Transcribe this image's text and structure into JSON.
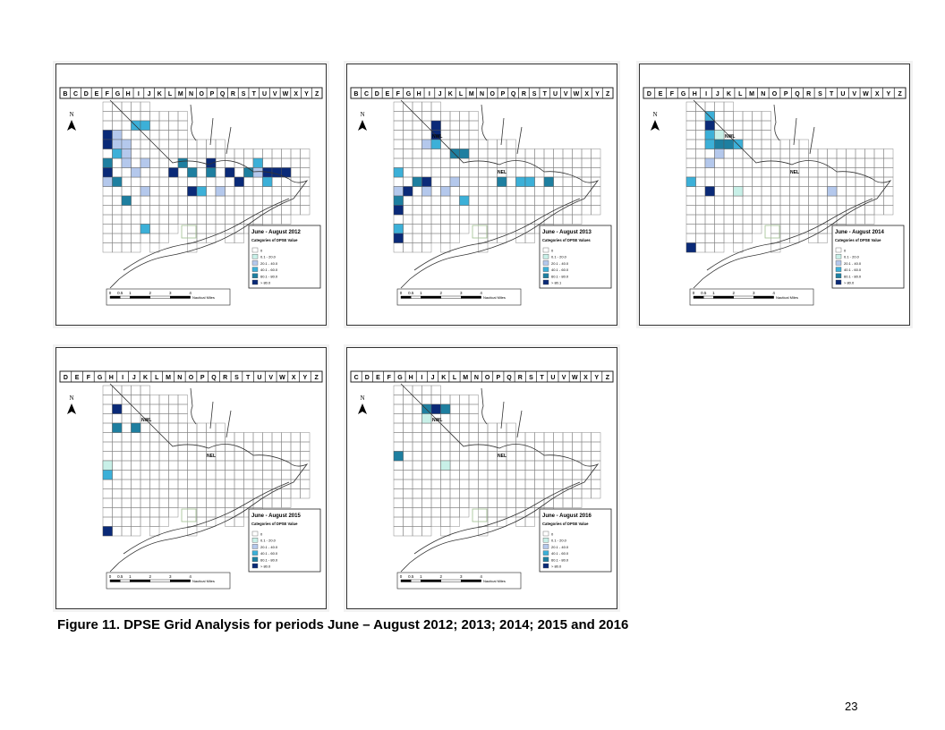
{
  "panels": [
    {
      "period": "June - August 2012",
      "legend_title": "Categories of DPSE Value",
      "columns": [
        "B",
        "C",
        "D",
        "E",
        "F",
        "G",
        "H",
        "I",
        "J",
        "K",
        "L",
        "M",
        "N",
        "O",
        "P",
        "Q",
        "R",
        "S",
        "T",
        "U",
        "V",
        "W",
        "X",
        "Y",
        "Z"
      ],
      "legend": [
        "0",
        "0.1 - 20.0",
        "20.1 - 40.0",
        "40.1 - 60.0",
        "60.1 - 80.0",
        "> 80.0"
      ],
      "labels": [],
      "scale": [
        "0",
        "0.5",
        "1",
        "2",
        "3",
        "4"
      ],
      "scale_unit": "Nautical Miles",
      "north": "N"
    },
    {
      "period": "June - August 2013",
      "legend_title": "Categories of DPSE Values",
      "columns": [
        "B",
        "C",
        "D",
        "E",
        "F",
        "G",
        "H",
        "I",
        "J",
        "K",
        "L",
        "M",
        "N",
        "O",
        "P",
        "Q",
        "R",
        "S",
        "T",
        "U",
        "V",
        "W",
        "X",
        "Y",
        "Z"
      ],
      "legend": [
        "0",
        "0.1 - 20.0",
        "20.1 - 40.0",
        "40.1 - 60.0",
        "60.1 - 80.0",
        "> 80.1"
      ],
      "labels": [
        "NWL",
        "NEL"
      ],
      "scale": [
        "0",
        "0.5",
        "1",
        "2",
        "3",
        "4"
      ],
      "scale_unit": "Nautical Miles",
      "north": "N"
    },
    {
      "period": "June - August 2014",
      "legend_title": "Categories of DPSE Value",
      "columns": [
        "D",
        "E",
        "F",
        "G",
        "H",
        "I",
        "J",
        "K",
        "L",
        "M",
        "N",
        "O",
        "P",
        "Q",
        "R",
        "S",
        "T",
        "U",
        "V",
        "W",
        "X",
        "Y",
        "Z"
      ],
      "legend": [
        "0",
        "0.1 - 20.0",
        "20.1 - 40.0",
        "40.1 - 60.0",
        "60.1 - 80.0",
        "> 80.0"
      ],
      "labels": [
        "NWL",
        "NEL"
      ],
      "scale": [
        "0",
        "0.5",
        "1",
        "2",
        "3",
        "4"
      ],
      "scale_unit": "Nautical Miles",
      "north": "N"
    },
    {
      "period": "June - August 2015",
      "legend_title": "Categories of DPSE Value",
      "columns": [
        "D",
        "E",
        "F",
        "G",
        "H",
        "I",
        "J",
        "K",
        "L",
        "M",
        "N",
        "O",
        "P",
        "Q",
        "R",
        "S",
        "T",
        "U",
        "V",
        "W",
        "X",
        "Y",
        "Z"
      ],
      "legend": [
        "0",
        "0.1 - 20.0",
        "20.1 - 40.0",
        "40.1 - 60.0",
        "60.1 - 80.0",
        "> 80.0"
      ],
      "labels": [
        "NWL",
        "NEL"
      ],
      "scale": [
        "0",
        "0.5",
        "1",
        "2",
        "3",
        "4"
      ],
      "scale_unit": "Nautical Miles",
      "north": "N"
    },
    {
      "period": "June - August 2016",
      "legend_title": "Categories of DPSE Value",
      "columns": [
        "C",
        "D",
        "E",
        "F",
        "G",
        "H",
        "I",
        "J",
        "K",
        "L",
        "M",
        "N",
        "O",
        "P",
        "Q",
        "R",
        "S",
        "T",
        "U",
        "V",
        "W",
        "X",
        "Y",
        "Z"
      ],
      "legend": [
        "0",
        "0.1 - 20.0",
        "20.1 - 40.0",
        "40.1 - 60.0",
        "60.1 - 80.0",
        "> 80.0"
      ],
      "labels": [
        "NWL",
        "NEL"
      ],
      "scale": [
        "0",
        "0.5",
        "1",
        "2",
        "3",
        "4"
      ],
      "scale_unit": "Nautical Miles",
      "north": "N"
    }
  ],
  "legend_colors": [
    "#ffffff",
    "#c8f0e8",
    "#b4c8ec",
    "#3cb0d8",
    "#1e7fa0",
    "#0a2a78"
  ],
  "caption": "Figure 11.  DPSE Grid Analysis for periods June – August 2012; 2013; 2014; 2015 and 2016",
  "page_number": "23"
}
